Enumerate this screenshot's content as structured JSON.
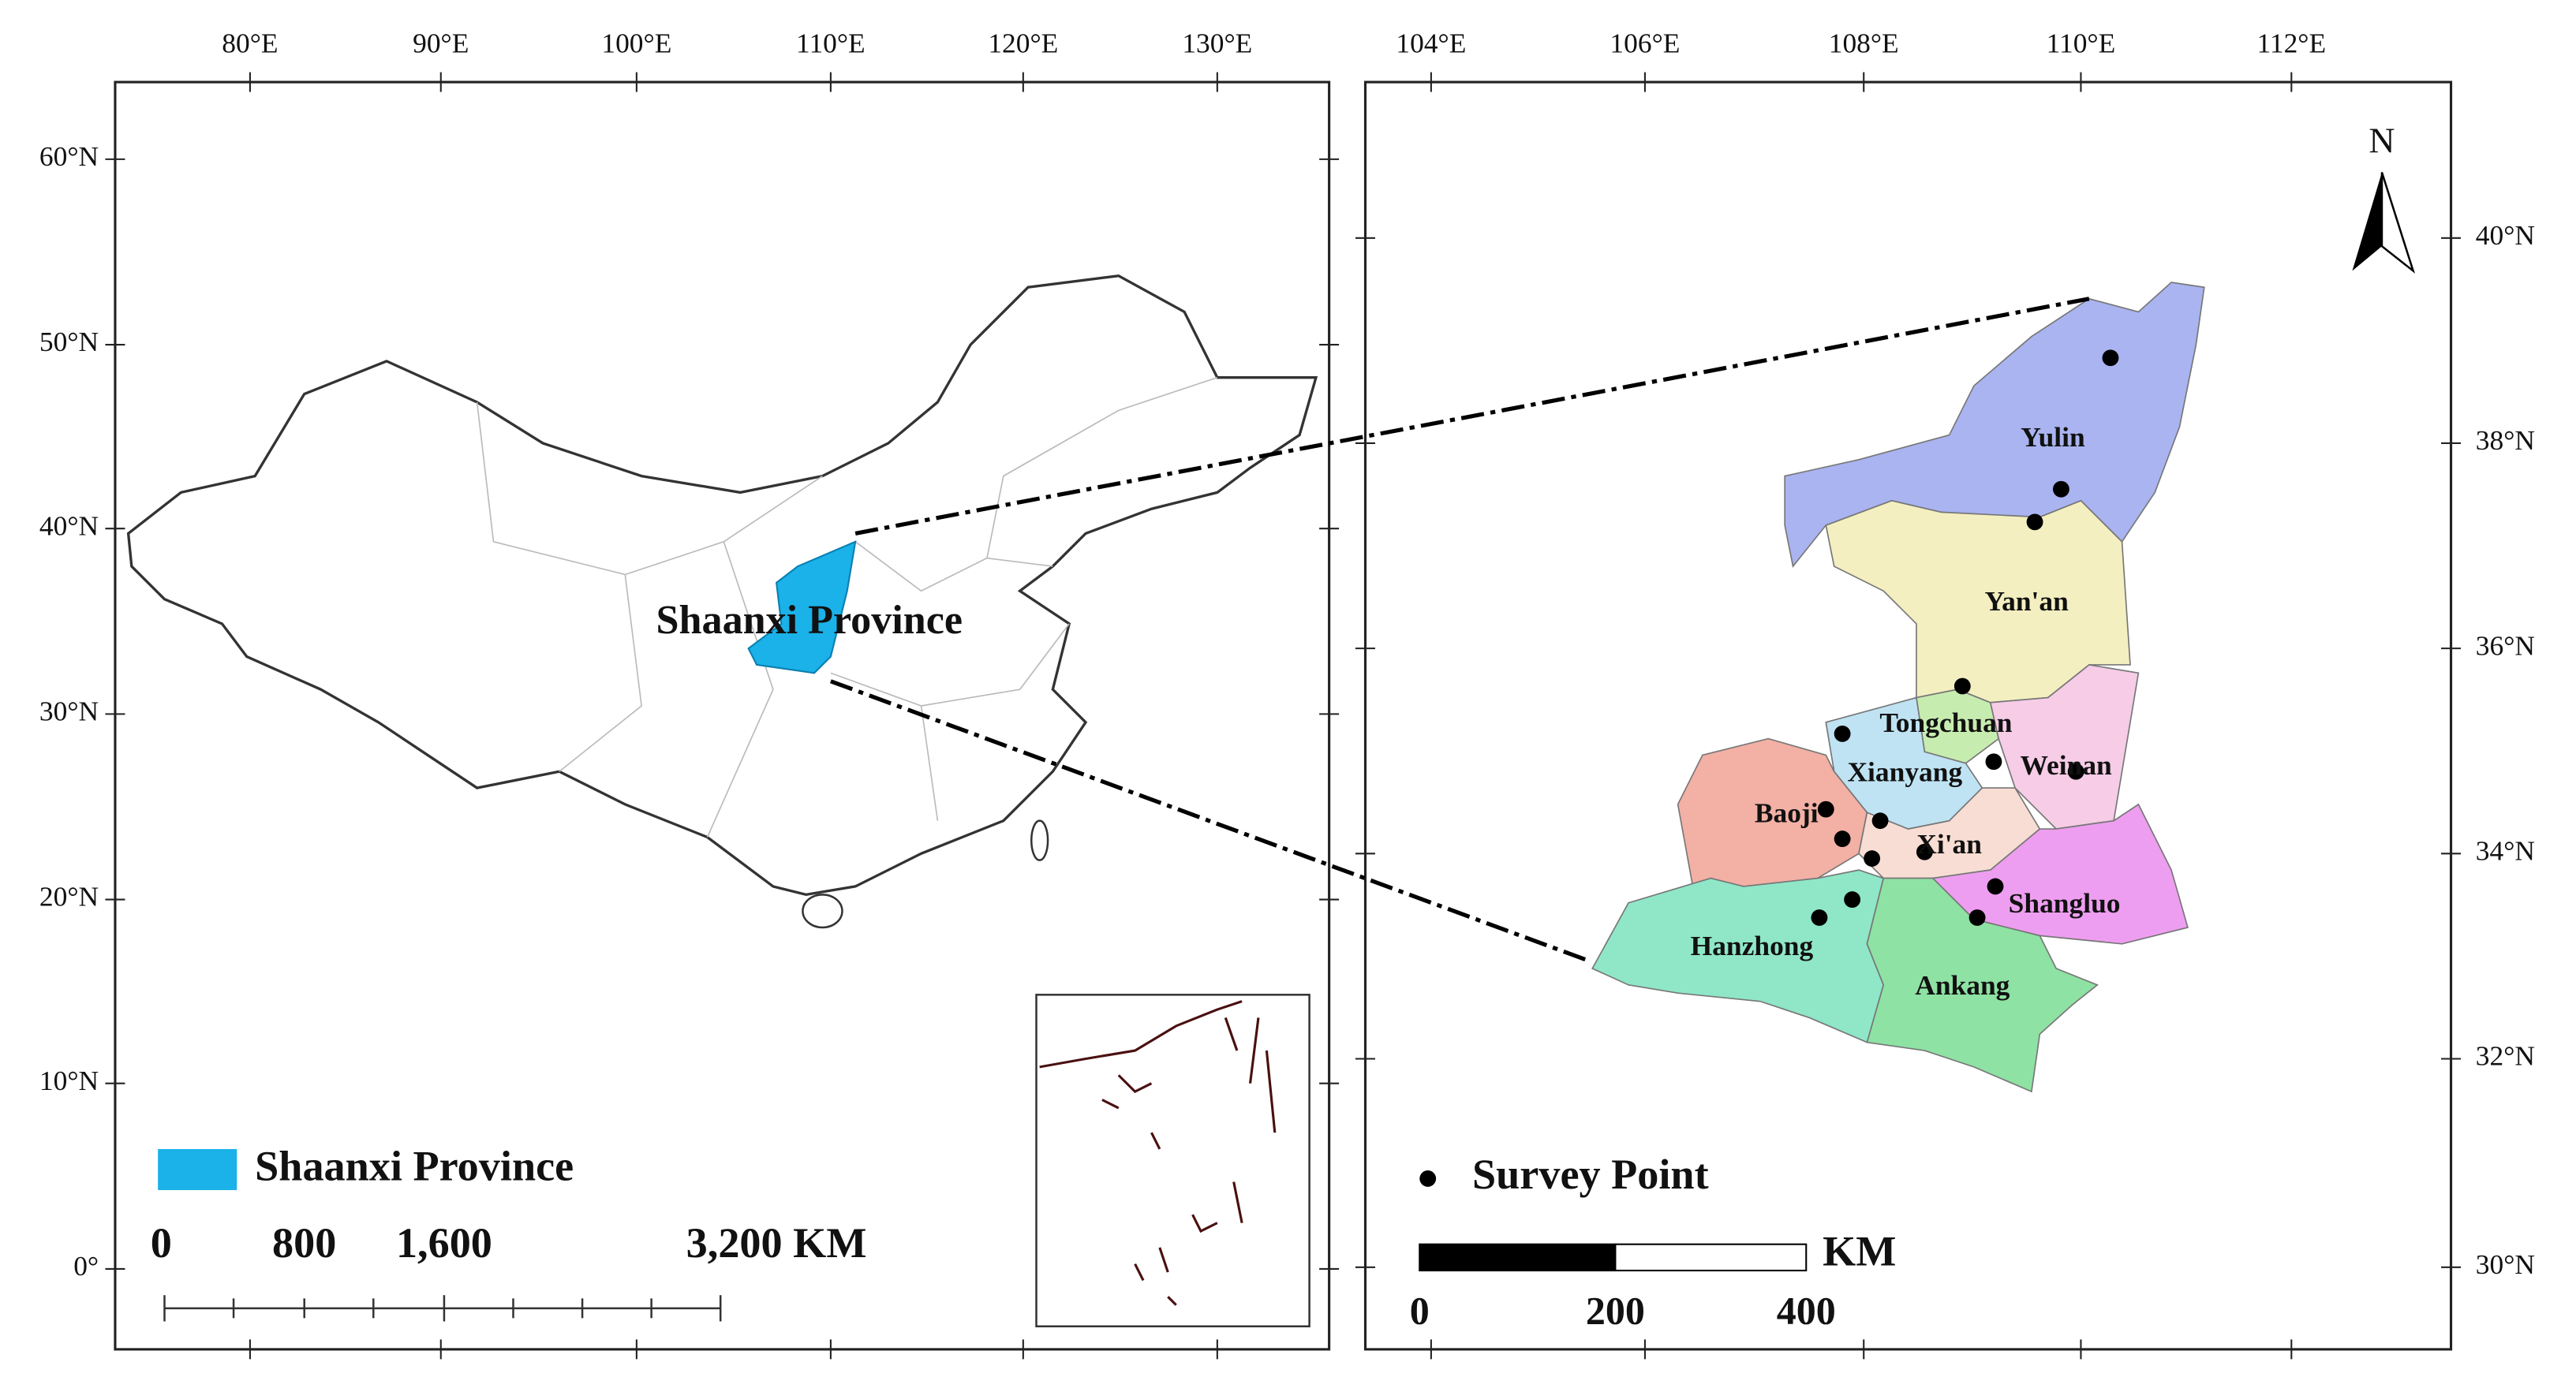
{
  "left_map": {
    "lon_ticks": [
      "80°E",
      "90°E",
      "100°E",
      "110°E",
      "120°E",
      "130°E"
    ],
    "lat_ticks": [
      "60°N",
      "50°N",
      "40°N",
      "30°N",
      "20°N",
      "10°N",
      "0°"
    ],
    "highlight_label": "Shaanxi Province",
    "legend": "Shaanxi Province",
    "scale_labels": [
      "0",
      "800",
      "1,600",
      "3,200 KM"
    ]
  },
  "right_map": {
    "lon_ticks": [
      "104°E",
      "106°E",
      "108°E",
      "110°E",
      "112°E"
    ],
    "lat_ticks": [
      "40°N",
      "38°N",
      "36°N",
      "34°N",
      "32°N",
      "30°N"
    ],
    "north": "N",
    "cities": [
      "Yulin",
      "Yan'an",
      "Tongchuan",
      "Xianyang",
      "Weinan",
      "Baoji",
      "Xi'an",
      "Shangluo",
      "Hanzhong",
      "Ankang"
    ],
    "legend": "Survey Point",
    "scale_labels": [
      "0",
      "200",
      "400"
    ],
    "scale_unit": "KM"
  }
}
